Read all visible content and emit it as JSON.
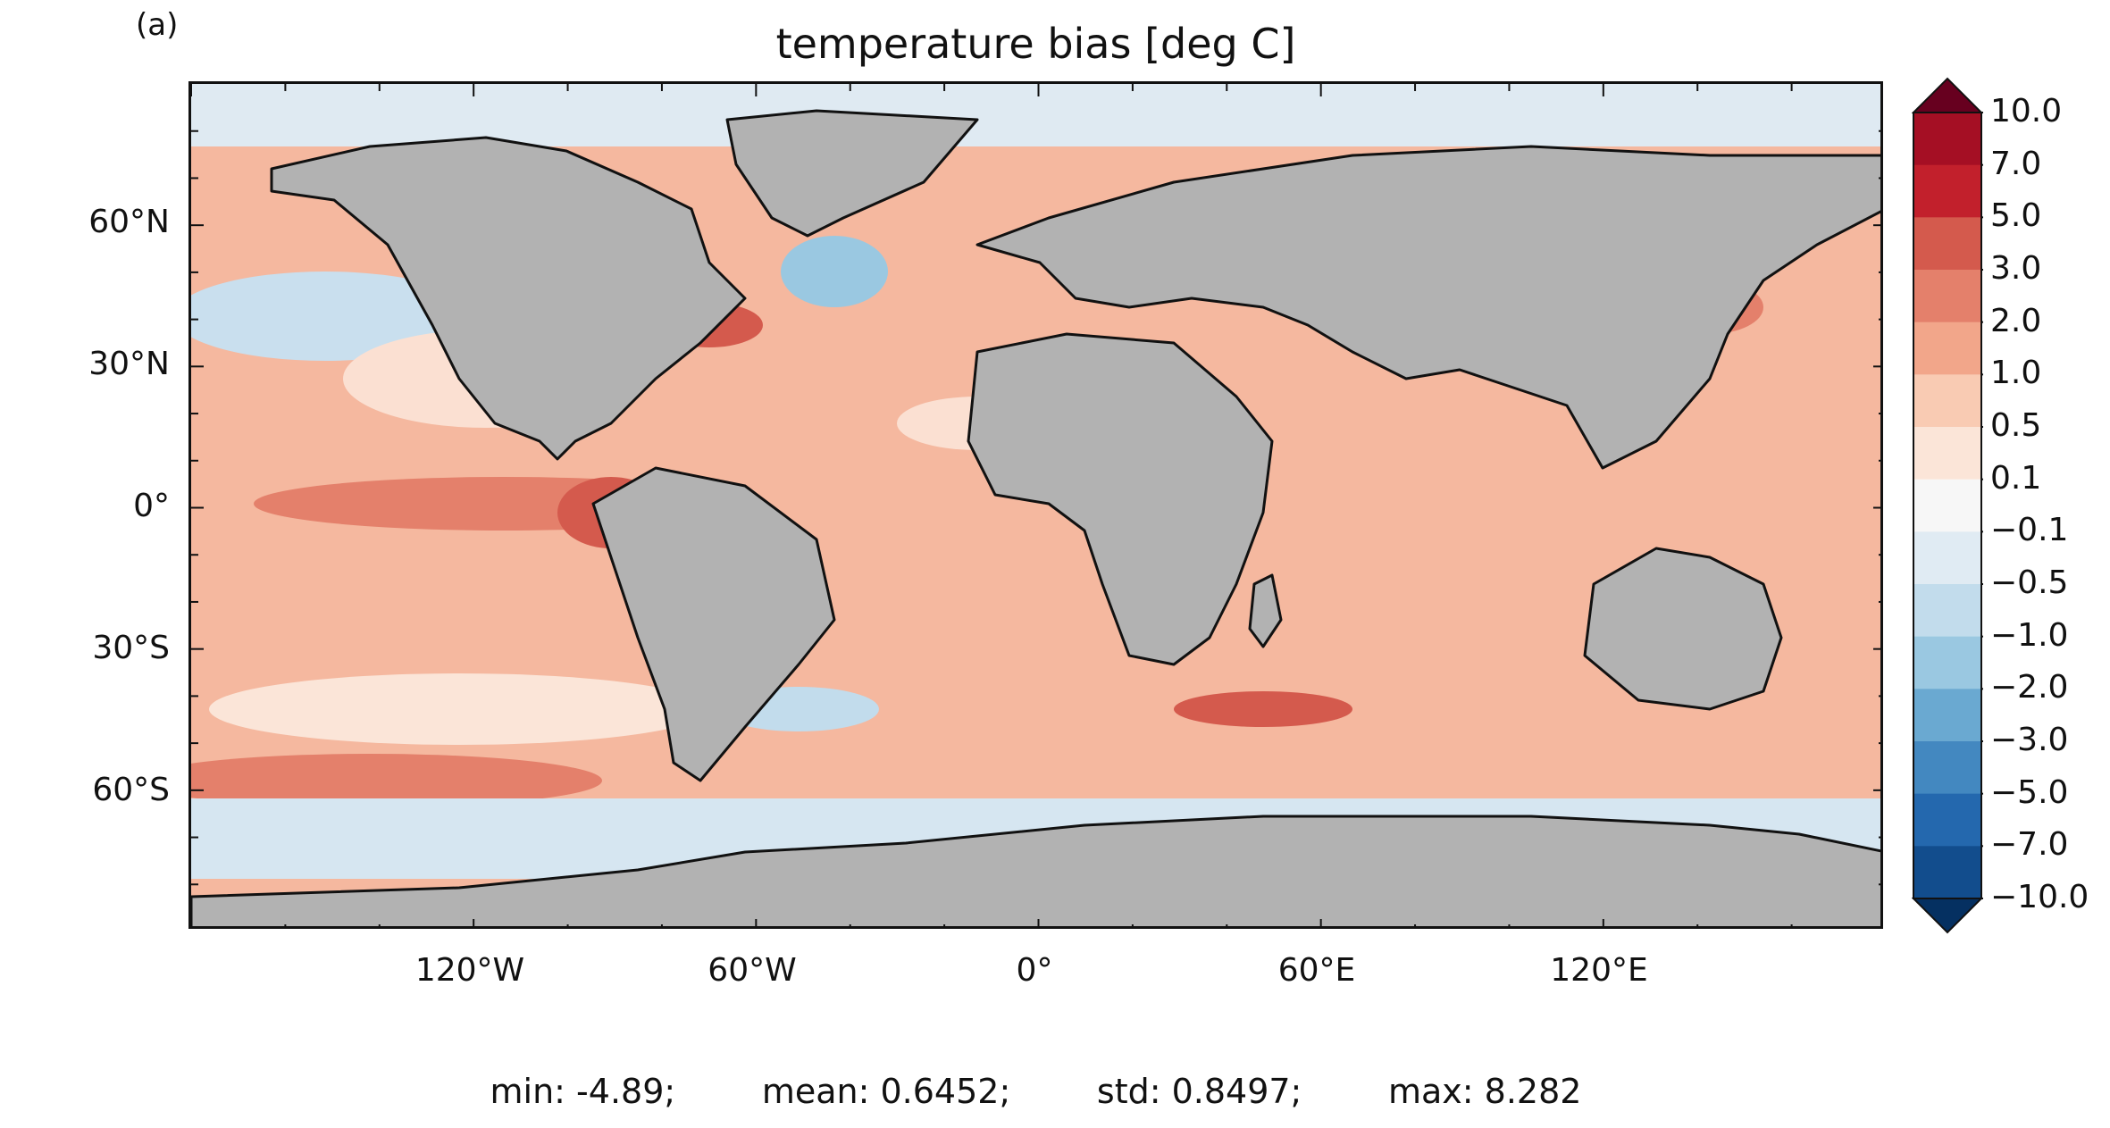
{
  "panel_label": "(a)",
  "title": "temperature bias [deg C]",
  "y_ticks": [
    "60°N",
    "30°N",
    "0°",
    "30°S",
    "60°S"
  ],
  "x_ticks": [
    "120°W",
    "60°W",
    "0°",
    "60°E",
    "120°E"
  ],
  "stats": {
    "min": "min: -4.89;",
    "mean": "mean: 0.6452;",
    "std": "std: 0.8497;",
    "max": "max: 8.282"
  },
  "colorbar": {
    "labels": [
      "10.0",
      "7.0",
      "5.0",
      "3.0",
      "2.0",
      "1.0",
      "0.5",
      "0.1",
      "−0.1",
      "−0.5",
      "−1.0",
      "−2.0",
      "−3.0",
      "−5.0",
      "−7.0",
      "−10.0"
    ],
    "colors": [
      "#a50f24",
      "#c2202c",
      "#d45a4d",
      "#e4806b",
      "#f2a68a",
      "#f9cbb3",
      "#fbe5d8",
      "#f7f7f7",
      "#e0ebf3",
      "#c2dcec",
      "#9ac8e1",
      "#6aa9d1",
      "#4388c0",
      "#2468ae",
      "#124d8d"
    ],
    "extend_max_color": "#67001f",
    "extend_min_color": "#053061"
  },
  "map_colors": {
    "land": "#b2b2b2",
    "ocean_warm": "#f2a68a",
    "ocean_light": "#fbe5d8",
    "ocean_cold": "#c2dcec",
    "ocean_hot": "#d45a4d",
    "coast": "#111111"
  }
}
